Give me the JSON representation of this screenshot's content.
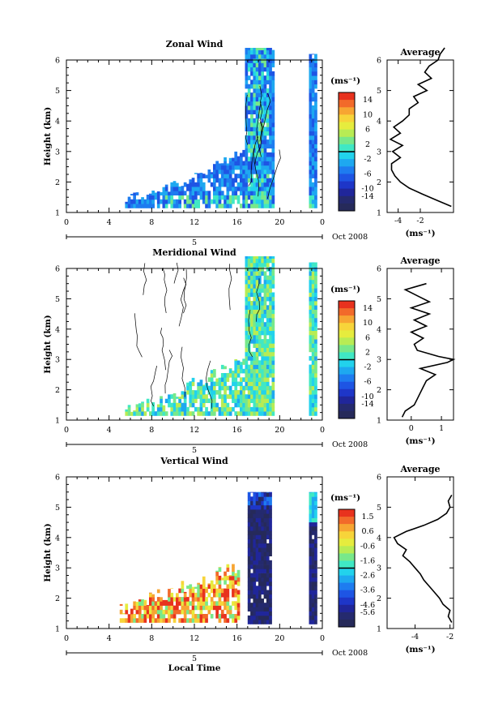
{
  "figure": {
    "x_axis_label": "Local Time",
    "date_label_prefix": "5",
    "date_label_suffix": "Oct 2008",
    "x_ticks": [
      "0",
      "4",
      "8",
      "12",
      "16",
      "20",
      "0"
    ],
    "y_ticks": [
      "1",
      "2",
      "3",
      "4",
      "5",
      "6"
    ],
    "y_axis_label": "Height (km)",
    "unit_label": "(ms⁻¹)",
    "average_title": "Average"
  },
  "chart_data": [
    {
      "type": "heatmap",
      "title": "Zonal Wind",
      "xlabel": "",
      "ylabel": "Height (km)",
      "xlim": [
        0,
        24
      ],
      "ylim": [
        1,
        6
      ],
      "colorbar": {
        "label": "(ms⁻¹)",
        "range": [
          -14,
          14
        ],
        "ticks": [
          "14",
          "10",
          "6",
          "2",
          "-2",
          "-6",
          "-10",
          "-14"
        ]
      },
      "average_profile": {
        "title": "Average",
        "xlabel": "(ms⁻¹)",
        "xlim": [
          -5,
          1
        ],
        "x_ticks": [
          "-4",
          "-2"
        ],
        "x_tick_values": [
          -4,
          -2
        ],
        "height": [
          1.2,
          1.4,
          1.6,
          1.8,
          2.0,
          2.2,
          2.4,
          2.6,
          2.8,
          3.0,
          3.2,
          3.4,
          3.6,
          3.8,
          4.0,
          4.2,
          4.4,
          4.6,
          4.8,
          5.0,
          5.2,
          5.4,
          5.6,
          5.8,
          6.0,
          6.2,
          6.4
        ],
        "value": [
          0.8,
          -0.5,
          -1.8,
          -3.0,
          -3.8,
          -4.3,
          -4.6,
          -4.6,
          -3.8,
          -4.5,
          -3.6,
          -4.7,
          -3.8,
          -4.4,
          -3.6,
          -3.0,
          -3.0,
          -2.2,
          -2.6,
          -1.4,
          -2.2,
          -1.0,
          -1.6,
          -1.2,
          -0.4,
          -0.2,
          0.2
        ]
      }
    },
    {
      "type": "heatmap",
      "title": "Meridional Wind",
      "xlabel": "",
      "ylabel": "Height (km)",
      "xlim": [
        0,
        24
      ],
      "ylim": [
        1,
        6
      ],
      "colorbar": {
        "label": "(ms⁻¹)",
        "range": [
          -14,
          14
        ],
        "ticks": [
          "14",
          "10",
          "6",
          "2",
          "-2",
          "-6",
          "-10",
          "-14"
        ]
      },
      "average_profile": {
        "title": "Average",
        "xlabel": "(ms⁻¹)",
        "xlim": [
          -0.8,
          1.4
        ],
        "x_ticks": [
          "0",
          "1"
        ],
        "x_tick_values": [
          0,
          1
        ],
        "height": [
          1.1,
          1.3,
          1.5,
          1.7,
          1.9,
          2.1,
          2.3,
          2.5,
          2.7,
          2.9,
          3.0,
          3.1,
          3.3,
          3.5,
          3.7,
          3.9,
          4.1,
          4.3,
          4.5,
          4.7,
          4.9,
          5.1,
          5.3,
          5.5
        ],
        "value": [
          -0.3,
          -0.2,
          0.1,
          0.2,
          0.3,
          0.4,
          0.5,
          0.8,
          0.3,
          1.2,
          1.4,
          0.9,
          0.2,
          0.1,
          0.4,
          0.0,
          0.5,
          0.1,
          0.6,
          0.0,
          0.6,
          0.2,
          -0.2,
          0.5
        ]
      }
    },
    {
      "type": "heatmap",
      "title": "Vertical Wind",
      "xlabel": "Local Time",
      "ylabel": "Height (km)",
      "xlim": [
        0,
        24
      ],
      "ylim": [
        1,
        6
      ],
      "colorbar": {
        "label": "(ms⁻¹)",
        "range": [
          -5.6,
          1.5
        ],
        "ticks": [
          "1.5",
          "0.6",
          "-0.6",
          "-1.6",
          "-2.6",
          "-3.6",
          "-4.6",
          "-5.6"
        ]
      },
      "average_profile": {
        "title": "Average",
        "xlabel": "(ms⁻¹)",
        "xlim": [
          -5.6,
          -1.8
        ],
        "x_ticks": [
          "-4",
          "-2"
        ],
        "x_tick_values": [
          -4,
          -2
        ],
        "height": [
          1.2,
          1.4,
          1.6,
          1.8,
          2.0,
          2.2,
          2.4,
          2.6,
          2.8,
          3.0,
          3.2,
          3.4,
          3.6,
          3.8,
          4.0,
          4.2,
          4.4,
          4.6,
          4.8,
          5.0,
          5.2,
          5.4
        ],
        "value": [
          -1.9,
          -2.1,
          -2.0,
          -2.4,
          -2.6,
          -2.9,
          -3.2,
          -3.5,
          -3.7,
          -4.0,
          -4.3,
          -4.7,
          -4.5,
          -5.0,
          -5.2,
          -4.5,
          -3.5,
          -2.7,
          -2.2,
          -2.0,
          -2.1,
          -1.9
        ]
      }
    }
  ]
}
